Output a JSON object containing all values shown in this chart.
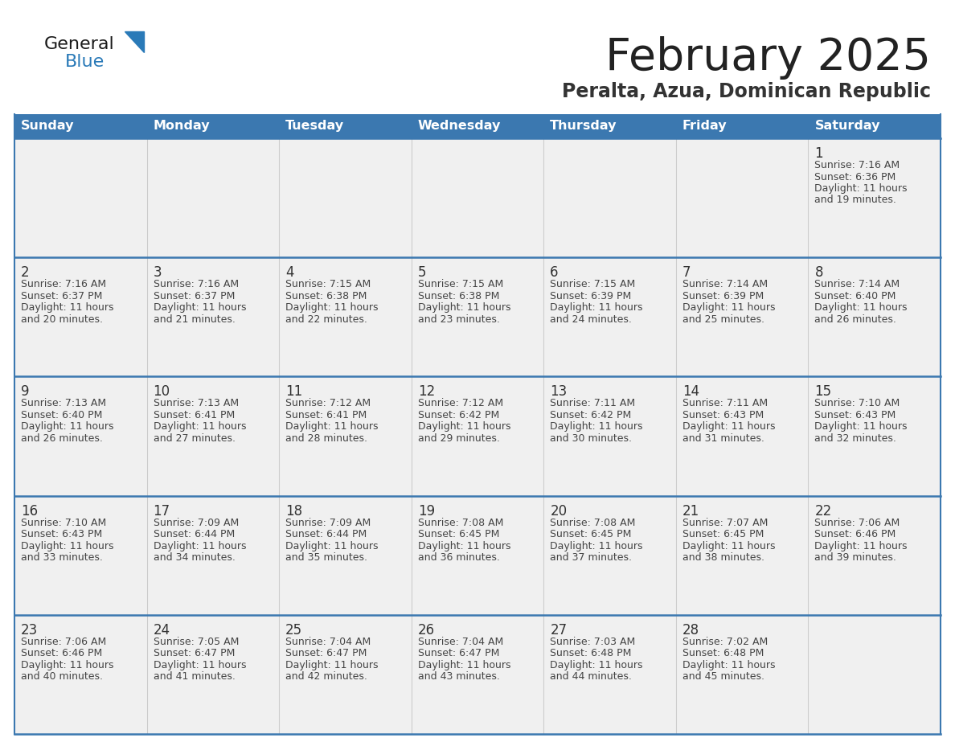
{
  "title": "February 2025",
  "subtitle": "Peralta, Azua, Dominican Republic",
  "days_of_week": [
    "Sunday",
    "Monday",
    "Tuesday",
    "Wednesday",
    "Thursday",
    "Friday",
    "Saturday"
  ],
  "header_bg": "#3b78b0",
  "header_text": "#ffffff",
  "cell_bg": "#f0f0f0",
  "cell_border_color": "#3b78b0",
  "vertical_line_color": "#cccccc",
  "day_number_color": "#333333",
  "info_text_color": "#444444",
  "title_color": "#222222",
  "subtitle_color": "#333333",
  "logo_general_color": "#1a1a1a",
  "logo_blue_color": "#2a7ab8",
  "calendar_data": [
    [
      null,
      null,
      null,
      null,
      null,
      null,
      {
        "day": 1,
        "sunrise": "7:16 AM",
        "sunset": "6:36 PM",
        "daylight_line1": "Daylight: 11 hours",
        "daylight_line2": "and 19 minutes."
      }
    ],
    [
      {
        "day": 2,
        "sunrise": "7:16 AM",
        "sunset": "6:37 PM",
        "daylight_line1": "Daylight: 11 hours",
        "daylight_line2": "and 20 minutes."
      },
      {
        "day": 3,
        "sunrise": "7:16 AM",
        "sunset": "6:37 PM",
        "daylight_line1": "Daylight: 11 hours",
        "daylight_line2": "and 21 minutes."
      },
      {
        "day": 4,
        "sunrise": "7:15 AM",
        "sunset": "6:38 PM",
        "daylight_line1": "Daylight: 11 hours",
        "daylight_line2": "and 22 minutes."
      },
      {
        "day": 5,
        "sunrise": "7:15 AM",
        "sunset": "6:38 PM",
        "daylight_line1": "Daylight: 11 hours",
        "daylight_line2": "and 23 minutes."
      },
      {
        "day": 6,
        "sunrise": "7:15 AM",
        "sunset": "6:39 PM",
        "daylight_line1": "Daylight: 11 hours",
        "daylight_line2": "and 24 minutes."
      },
      {
        "day": 7,
        "sunrise": "7:14 AM",
        "sunset": "6:39 PM",
        "daylight_line1": "Daylight: 11 hours",
        "daylight_line2": "and 25 minutes."
      },
      {
        "day": 8,
        "sunrise": "7:14 AM",
        "sunset": "6:40 PM",
        "daylight_line1": "Daylight: 11 hours",
        "daylight_line2": "and 26 minutes."
      }
    ],
    [
      {
        "day": 9,
        "sunrise": "7:13 AM",
        "sunset": "6:40 PM",
        "daylight_line1": "Daylight: 11 hours",
        "daylight_line2": "and 26 minutes."
      },
      {
        "day": 10,
        "sunrise": "7:13 AM",
        "sunset": "6:41 PM",
        "daylight_line1": "Daylight: 11 hours",
        "daylight_line2": "and 27 minutes."
      },
      {
        "day": 11,
        "sunrise": "7:12 AM",
        "sunset": "6:41 PM",
        "daylight_line1": "Daylight: 11 hours",
        "daylight_line2": "and 28 minutes."
      },
      {
        "day": 12,
        "sunrise": "7:12 AM",
        "sunset": "6:42 PM",
        "daylight_line1": "Daylight: 11 hours",
        "daylight_line2": "and 29 minutes."
      },
      {
        "day": 13,
        "sunrise": "7:11 AM",
        "sunset": "6:42 PM",
        "daylight_line1": "Daylight: 11 hours",
        "daylight_line2": "and 30 minutes."
      },
      {
        "day": 14,
        "sunrise": "7:11 AM",
        "sunset": "6:43 PM",
        "daylight_line1": "Daylight: 11 hours",
        "daylight_line2": "and 31 minutes."
      },
      {
        "day": 15,
        "sunrise": "7:10 AM",
        "sunset": "6:43 PM",
        "daylight_line1": "Daylight: 11 hours",
        "daylight_line2": "and 32 minutes."
      }
    ],
    [
      {
        "day": 16,
        "sunrise": "7:10 AM",
        "sunset": "6:43 PM",
        "daylight_line1": "Daylight: 11 hours",
        "daylight_line2": "and 33 minutes."
      },
      {
        "day": 17,
        "sunrise": "7:09 AM",
        "sunset": "6:44 PM",
        "daylight_line1": "Daylight: 11 hours",
        "daylight_line2": "and 34 minutes."
      },
      {
        "day": 18,
        "sunrise": "7:09 AM",
        "sunset": "6:44 PM",
        "daylight_line1": "Daylight: 11 hours",
        "daylight_line2": "and 35 minutes."
      },
      {
        "day": 19,
        "sunrise": "7:08 AM",
        "sunset": "6:45 PM",
        "daylight_line1": "Daylight: 11 hours",
        "daylight_line2": "and 36 minutes."
      },
      {
        "day": 20,
        "sunrise": "7:08 AM",
        "sunset": "6:45 PM",
        "daylight_line1": "Daylight: 11 hours",
        "daylight_line2": "and 37 minutes."
      },
      {
        "day": 21,
        "sunrise": "7:07 AM",
        "sunset": "6:45 PM",
        "daylight_line1": "Daylight: 11 hours",
        "daylight_line2": "and 38 minutes."
      },
      {
        "day": 22,
        "sunrise": "7:06 AM",
        "sunset": "6:46 PM",
        "daylight_line1": "Daylight: 11 hours",
        "daylight_line2": "and 39 minutes."
      }
    ],
    [
      {
        "day": 23,
        "sunrise": "7:06 AM",
        "sunset": "6:46 PM",
        "daylight_line1": "Daylight: 11 hours",
        "daylight_line2": "and 40 minutes."
      },
      {
        "day": 24,
        "sunrise": "7:05 AM",
        "sunset": "6:47 PM",
        "daylight_line1": "Daylight: 11 hours",
        "daylight_line2": "and 41 minutes."
      },
      {
        "day": 25,
        "sunrise": "7:04 AM",
        "sunset": "6:47 PM",
        "daylight_line1": "Daylight: 11 hours",
        "daylight_line2": "and 42 minutes."
      },
      {
        "day": 26,
        "sunrise": "7:04 AM",
        "sunset": "6:47 PM",
        "daylight_line1": "Daylight: 11 hours",
        "daylight_line2": "and 43 minutes."
      },
      {
        "day": 27,
        "sunrise": "7:03 AM",
        "sunset": "6:48 PM",
        "daylight_line1": "Daylight: 11 hours",
        "daylight_line2": "and 44 minutes."
      },
      {
        "day": 28,
        "sunrise": "7:02 AM",
        "sunset": "6:48 PM",
        "daylight_line1": "Daylight: 11 hours",
        "daylight_line2": "and 45 minutes."
      },
      null
    ]
  ]
}
